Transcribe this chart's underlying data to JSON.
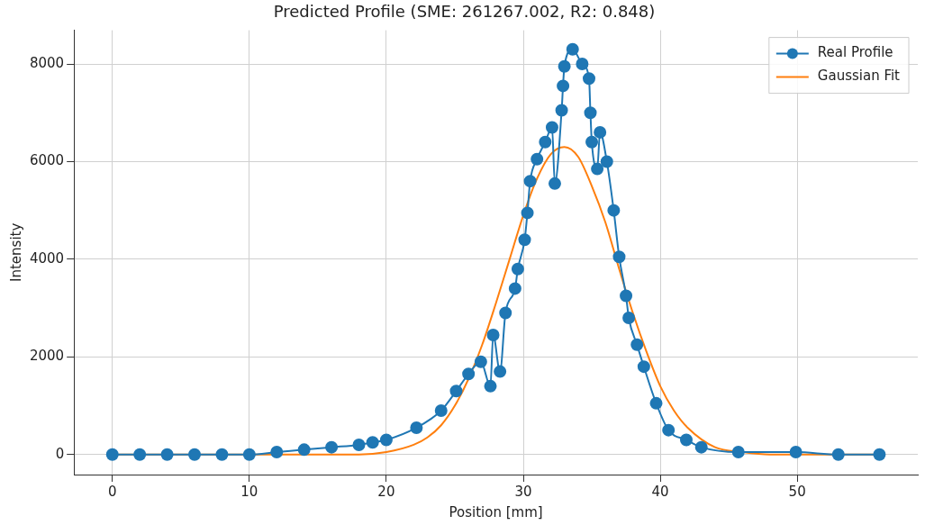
{
  "chart_data": {
    "type": "line",
    "title": "Predicted Profile (SME: 261267.002, R2: 0.848)",
    "xlabel": "Position [mm]",
    "ylabel": "Intensity",
    "xlim": [
      -2.8,
      58.8
    ],
    "ylim": [
      -410,
      8690
    ],
    "xticks": [
      0,
      10,
      20,
      30,
      40,
      50
    ],
    "yticks": [
      0,
      2000,
      4000,
      6000,
      8000
    ],
    "grid": true,
    "legend": "top right",
    "series": [
      {
        "name": "Real Profile",
        "marker": "circle",
        "color": "#1f77b4",
        "x": [
          0,
          2,
          4,
          6,
          8,
          10,
          12,
          14,
          16,
          18,
          19,
          20,
          22.2,
          24,
          25.1,
          26,
          26.9,
          27.6,
          27.8,
          28.3,
          28.7,
          29.4,
          29.6,
          30.1,
          30.3,
          30.5,
          31,
          31.6,
          32.1,
          32.3,
          32.8,
          32.9,
          33,
          33.6,
          34.3,
          34.8,
          34.9,
          35,
          35.4,
          35.6,
          36.1,
          36.6,
          37,
          37.5,
          37.7,
          38.3,
          38.8,
          39.7,
          40.6,
          41.9,
          43,
          45.7,
          49.9,
          53,
          56
        ],
        "values": [
          0,
          0,
          0,
          0,
          0,
          0,
          50,
          100,
          150,
          200,
          250,
          300,
          550,
          900,
          1300,
          1650,
          1900,
          1400,
          2450,
          1700,
          2900,
          3400,
          3800,
          4400,
          4950,
          5600,
          6050,
          6400,
          6700,
          5550,
          7050,
          7550,
          7950,
          8300,
          8000,
          7700,
          7000,
          6400,
          5850,
          6600,
          6000,
          5000,
          4050,
          3250,
          2800,
          2250,
          1800,
          1050,
          500,
          300,
          150,
          50,
          50,
          0,
          0
        ]
      },
      {
        "name": "Gaussian Fit",
        "marker": "none",
        "color": "#ff7f0e",
        "x": [
          0,
          10,
          16,
          18,
          20,
          22,
          23,
          24,
          25,
          26,
          27,
          28,
          29,
          30,
          31,
          32,
          33,
          34,
          35,
          36,
          37,
          38,
          39,
          40,
          41,
          42,
          44,
          46,
          48,
          50,
          56
        ],
        "values": [
          0,
          0,
          0,
          0,
          50,
          200,
          350,
          600,
          1000,
          1550,
          2250,
          3100,
          4000,
          4900,
          5650,
          6150,
          6300,
          6100,
          5500,
          4750,
          3800,
          2900,
          2100,
          1400,
          900,
          550,
          150,
          50,
          0,
          0,
          0
        ]
      }
    ]
  }
}
